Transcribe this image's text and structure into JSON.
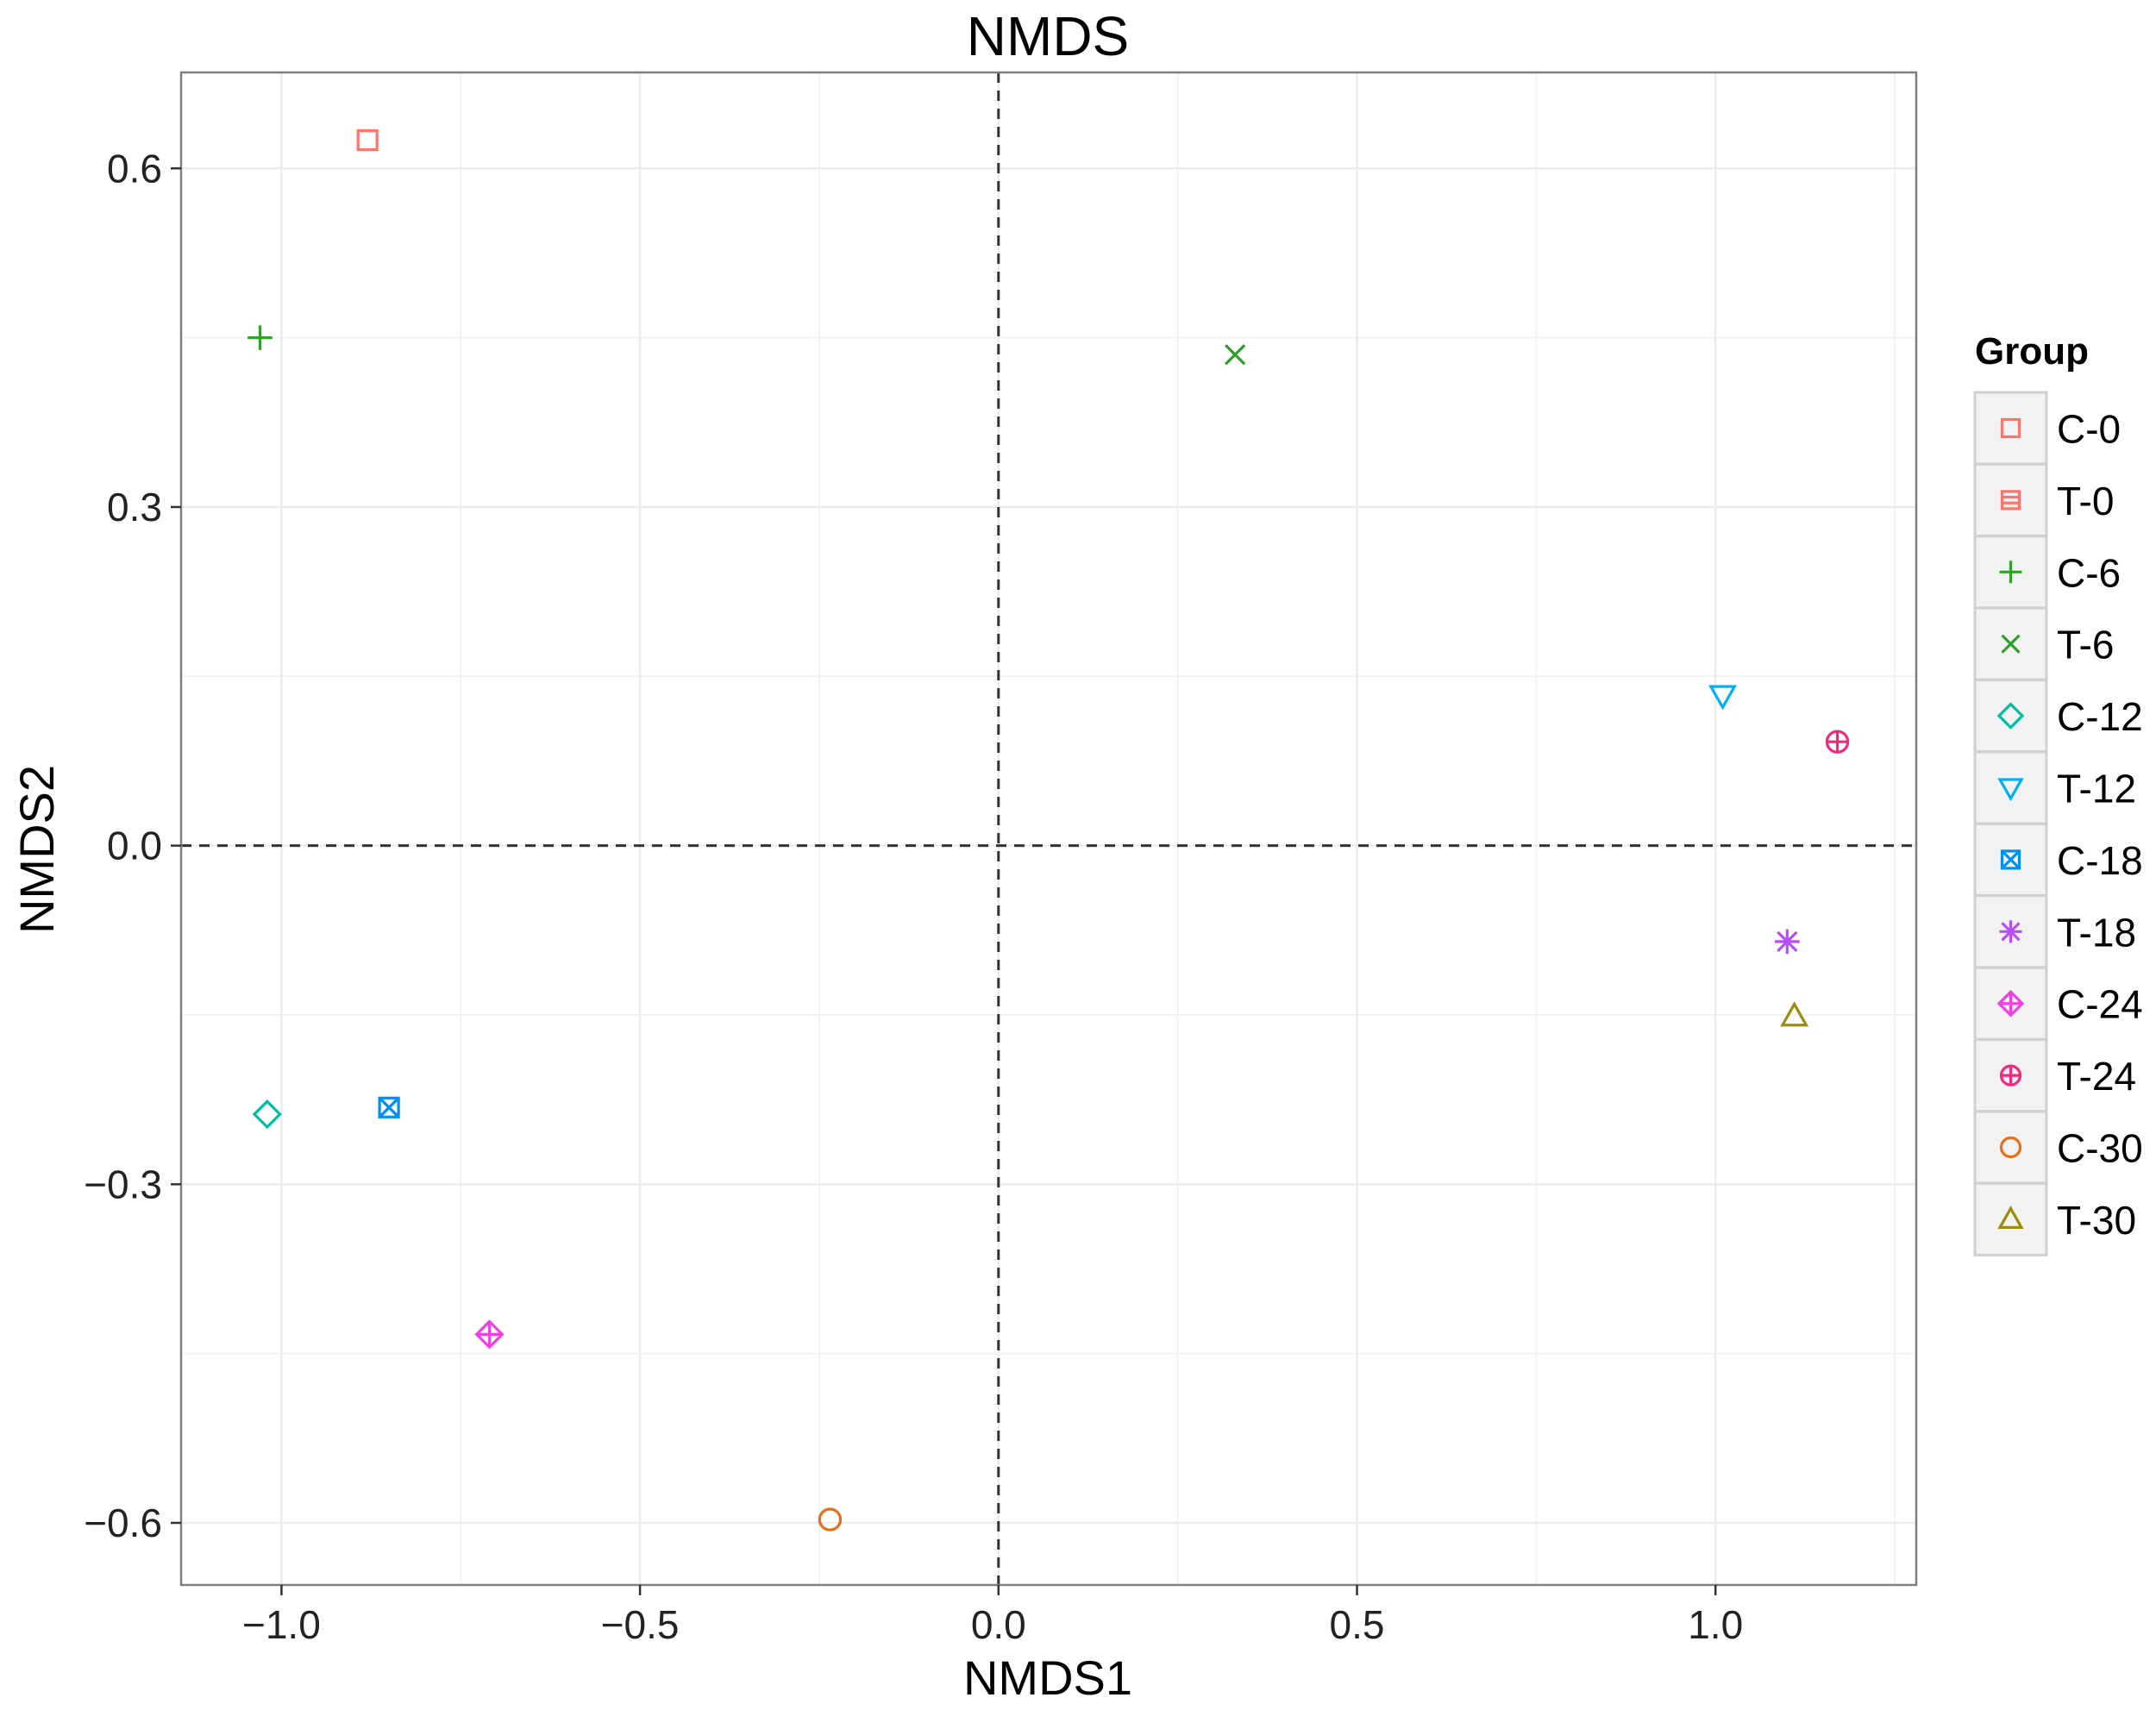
{
  "chart_data": {
    "type": "scatter",
    "title": "NMDS",
    "xlabel": "NMDS1",
    "ylabel": "NMDS2",
    "xlim": [
      -1.14,
      1.28
    ],
    "ylim": [
      -0.655,
      0.685
    ],
    "xticks": [
      -1.0,
      -0.5,
      0.0,
      0.5,
      1.0
    ],
    "xtick_labels": [
      "−1.0",
      "−0.5",
      "0.0",
      "0.5",
      "1.0"
    ],
    "yticks": [
      -0.6,
      -0.3,
      0.0,
      0.3,
      0.6
    ],
    "ytick_labels": [
      "−0.6",
      "−0.3",
      "0.0",
      "0.3",
      "0.6"
    ],
    "grid": true,
    "reference_lines": {
      "x": 0,
      "y": 0,
      "style": "dashed"
    },
    "legend": {
      "title": "Group",
      "position": "right"
    },
    "series": [
      {
        "name": "C-0",
        "x": -0.88,
        "y": 0.625,
        "color": "#F8766D",
        "shape": "square-open"
      },
      {
        "name": "T-0",
        "x": null,
        "y": null,
        "color": "#F8766D",
        "shape": "square-lines"
      },
      {
        "name": "C-6",
        "x": -1.03,
        "y": 0.45,
        "color": "#33A02C",
        "shape": "plus"
      },
      {
        "name": "T-6",
        "x": 0.33,
        "y": 0.435,
        "color": "#2CA02C",
        "shape": "cross"
      },
      {
        "name": "C-12",
        "x": -1.02,
        "y": -0.238,
        "color": "#00BFA0",
        "shape": "diamond-open"
      },
      {
        "name": "T-12",
        "x": 1.01,
        "y": 0.133,
        "color": "#00B0F6",
        "shape": "triangle-down-open"
      },
      {
        "name": "C-18",
        "x": -0.85,
        "y": -0.232,
        "color": "#0091F0",
        "shape": "square-cross"
      },
      {
        "name": "T-18",
        "x": 1.1,
        "y": -0.085,
        "color": "#B84CF5",
        "shape": "asterisk"
      },
      {
        "name": "C-24",
        "x": -0.71,
        "y": -0.433,
        "color": "#F23FE4",
        "shape": "diamond-plus"
      },
      {
        "name": "T-24",
        "x": 1.17,
        "y": 0.092,
        "color": "#F0287E",
        "shape": "circle-plus"
      },
      {
        "name": "C-30",
        "x": -0.235,
        "y": -0.597,
        "color": "#E36E1E",
        "shape": "circle-open"
      },
      {
        "name": "T-30",
        "x": 1.11,
        "y": -0.151,
        "color": "#9A8D0A",
        "shape": "triangle-up-open"
      }
    ]
  }
}
